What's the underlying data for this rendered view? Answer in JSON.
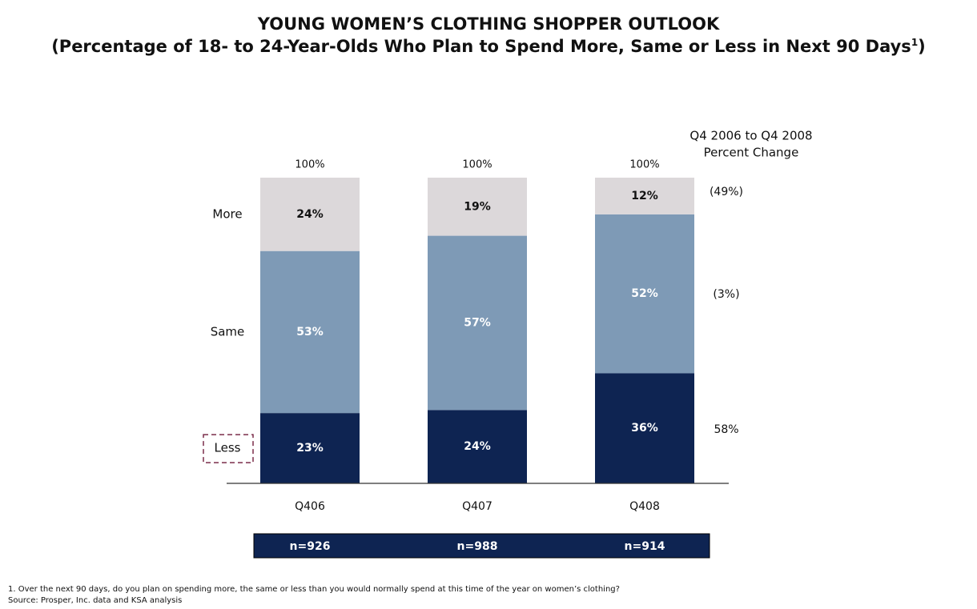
{
  "title": "YOUNG WOMEN’S CLOTHING SHOPPER OUTLOOK",
  "subtitle": "(Percentage of 18- to 24-Year-Olds Who Plan to Spend More, Same or Less in Next 90 Days",
  "subtitle_sup": "1",
  "colors": {
    "more": "#dcd8da",
    "same": "#7e9ab6",
    "less": "#0e2452",
    "less_box": "#7b2d4a",
    "axis": "#333333"
  },
  "chart_data": {
    "type": "bar",
    "stacked": true,
    "categories": [
      "Q406",
      "Q407",
      "Q408"
    ],
    "series": [
      {
        "name": "Less",
        "values": [
          23,
          24,
          36
        ],
        "labels": [
          "23%",
          "24%",
          "36%"
        ]
      },
      {
        "name": "Same",
        "values": [
          53,
          57,
          52
        ],
        "labels": [
          "53%",
          "57%",
          "52%"
        ]
      },
      {
        "name": "More",
        "values": [
          24,
          19,
          12
        ],
        "labels": [
          "24%",
          "19%",
          "12%"
        ]
      }
    ],
    "totals": [
      "100%",
      "100%",
      "100%"
    ],
    "sample_sizes": [
      "n=926",
      "n=988",
      "n=914"
    ],
    "percent_change": {
      "header_line1": "Q4 2006 to Q4 2008",
      "header_line2": "Percent Change",
      "values": [
        {
          "series": "More",
          "label": "(49%)"
        },
        {
          "series": "Same",
          "label": "(3%)"
        },
        {
          "series": "Less",
          "label": "58%"
        }
      ]
    },
    "ylim": [
      0,
      100
    ]
  },
  "footnotes": {
    "note1": "1. Over the next 90 days, do you plan on spending more, the same or less than you would normally spend at this time of the year on women’s clothing?",
    "source": "Source: Prosper, Inc. data and KSA analysis"
  }
}
